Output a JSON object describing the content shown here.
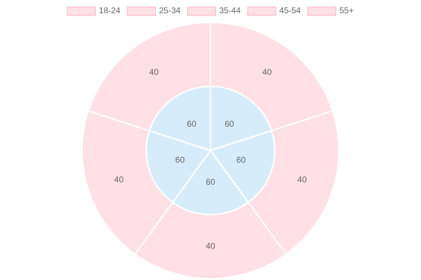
{
  "chart_data": {
    "type": "doughnut",
    "categories": [
      "18-24",
      "25-34",
      "35-44",
      "45-54",
      "55+"
    ],
    "series": [
      {
        "color": "#ffe0e6",
        "border_color": "#ffb1c1",
        "values": [
          40,
          40,
          40,
          40,
          40
        ]
      },
      {
        "color": "#d7ecfb",
        "border_color": "#9ad0f5",
        "values": [
          60,
          60,
          60,
          60,
          60
        ]
      }
    ],
    "legend": "top"
  }
}
